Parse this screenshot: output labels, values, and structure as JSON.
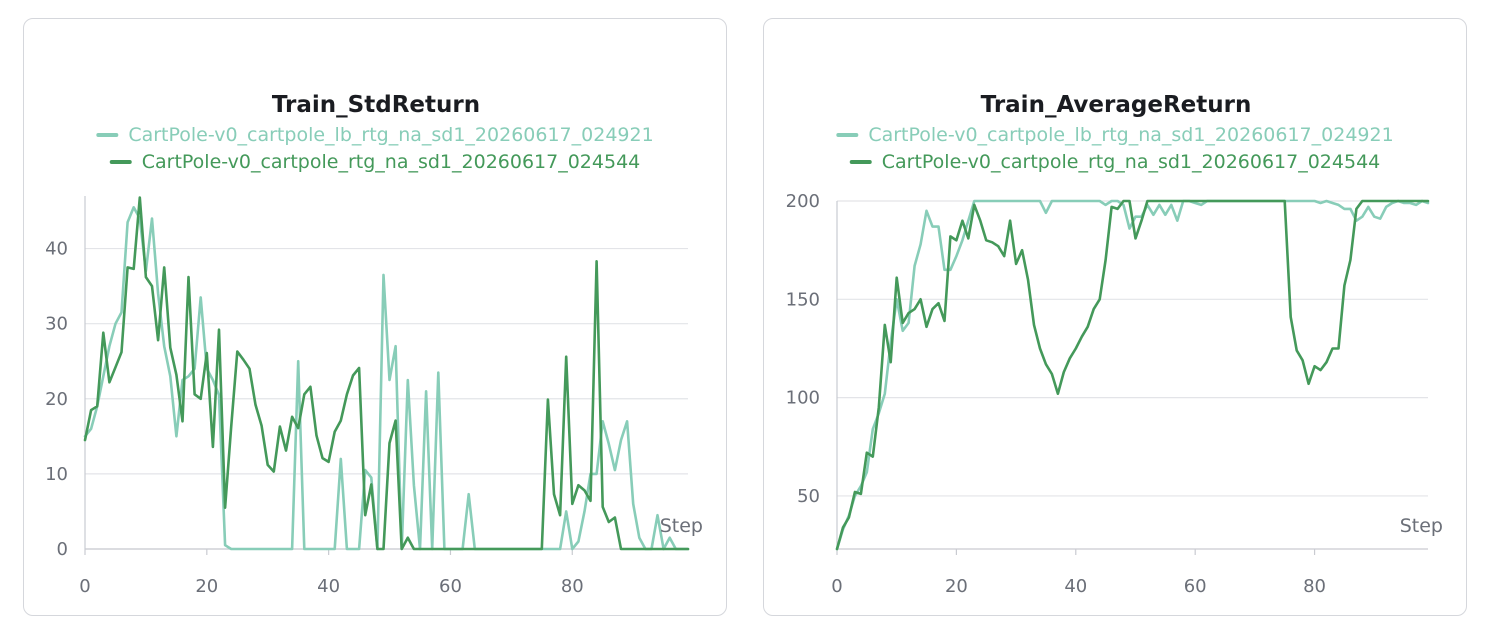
{
  "chart_data": [
    {
      "type": "line",
      "title": "Train_StdReturn",
      "xlabel": "Step",
      "ylabel": "",
      "xlim": [
        0,
        99
      ],
      "ylim": [
        0,
        47
      ],
      "xticks": [
        0,
        20,
        40,
        60,
        80
      ],
      "yticks": [
        0,
        10,
        20,
        30,
        40
      ],
      "grid": true,
      "legend_position": "top",
      "series": [
        {
          "name": "CartPole-v0_cartpole_lb_rtg_na_sd1_20260617_024921",
          "color": "#88cdb8",
          "x": [
            0,
            1,
            2,
            3,
            4,
            5,
            6,
            7,
            8,
            9,
            10,
            11,
            12,
            13,
            14,
            15,
            16,
            17,
            18,
            19,
            20,
            21,
            22,
            23,
            24,
            25,
            26,
            27,
            28,
            29,
            30,
            31,
            32,
            33,
            34,
            35,
            36,
            37,
            38,
            39,
            40,
            41,
            42,
            43,
            44,
            45,
            46,
            47,
            48,
            49,
            50,
            51,
            52,
            53,
            54,
            55,
            56,
            57,
            58,
            59,
            60,
            61,
            62,
            63,
            64,
            65,
            66,
            67,
            68,
            69,
            70,
            71,
            72,
            73,
            74,
            75,
            76,
            77,
            78,
            79,
            80,
            81,
            82,
            83,
            84,
            85,
            86,
            87,
            88,
            89,
            90,
            91,
            92,
            93,
            94,
            95,
            96,
            97,
            98,
            99
          ],
          "y": [
            15,
            16,
            19,
            23,
            27,
            30,
            31.5,
            43.5,
            45.5,
            44,
            37,
            44,
            34,
            27,
            23,
            15,
            22.5,
            23,
            24,
            33.5,
            24,
            22.5,
            20.5,
            0.5,
            0,
            0,
            0,
            0,
            0,
            0,
            0,
            0,
            0,
            0,
            0,
            25,
            0,
            0,
            0,
            0,
            0,
            0,
            12,
            0,
            0,
            0,
            10.5,
            9.5,
            0,
            36.5,
            22.5,
            27,
            0,
            22.5,
            8.5,
            0,
            21,
            0,
            23.5,
            0,
            0,
            0,
            0,
            7.3,
            0,
            0,
            0,
            0,
            0,
            0,
            0,
            0,
            0,
            0,
            0,
            0,
            0,
            0,
            0,
            5,
            0,
            1,
            5,
            10,
            10,
            17,
            14,
            10.5,
            14.5,
            17,
            6,
            1.5,
            0,
            0,
            4.5,
            0,
            1.5,
            0,
            0,
            0
          ]
        },
        {
          "name": "CartPole-v0_cartpole_rtg_na_sd1_20260617_024544",
          "color": "#44995a",
          "x": [
            0,
            1,
            2,
            3,
            4,
            5,
            6,
            7,
            8,
            9,
            10,
            11,
            12,
            13,
            14,
            15,
            16,
            17,
            18,
            19,
            20,
            21,
            22,
            23,
            24,
            25,
            26,
            27,
            28,
            29,
            30,
            31,
            32,
            33,
            34,
            35,
            36,
            37,
            38,
            39,
            40,
            41,
            42,
            43,
            44,
            45,
            46,
            47,
            48,
            49,
            50,
            51,
            52,
            53,
            54,
            55,
            56,
            57,
            58,
            59,
            60,
            61,
            62,
            63,
            64,
            65,
            66,
            67,
            68,
            69,
            70,
            71,
            72,
            73,
            74,
            75,
            76,
            77,
            78,
            79,
            80,
            81,
            82,
            83,
            84,
            85,
            86,
            87,
            88,
            89,
            90,
            91,
            92,
            93,
            94,
            95,
            96,
            97,
            98,
            99
          ],
          "y": [
            14.5,
            18.5,
            19,
            28.8,
            22.2,
            24.2,
            26.2,
            37.5,
            37.3,
            46.8,
            36.2,
            35,
            27.8,
            37.5,
            26.8,
            23.2,
            17,
            36.2,
            20.6,
            20,
            26.1,
            13.6,
            29.2,
            5.5,
            16.3,
            26.3,
            25.2,
            24,
            19.2,
            16.4,
            11.2,
            10.3,
            16.3,
            13.1,
            17.6,
            16.1,
            20.6,
            21.6,
            15.1,
            12.1,
            11.6,
            15.6,
            17.1,
            20.6,
            23.1,
            24.1,
            4.5,
            8.6,
            0,
            0,
            14.1,
            17.1,
            0,
            1.5,
            0,
            0,
            0,
            0,
            0,
            0,
            0,
            0,
            0,
            0,
            0,
            0,
            0,
            0,
            0,
            0,
            0,
            0,
            0,
            0,
            0,
            0,
            19.9,
            7.3,
            4.5,
            25.6,
            6,
            8.5,
            7.8,
            6.4,
            38.3,
            5.6,
            3.6,
            4.2,
            0,
            0,
            0,
            0,
            0,
            0,
            0,
            0,
            0,
            0,
            0,
            0
          ]
        }
      ]
    },
    {
      "type": "line",
      "title": "Train_AverageReturn",
      "xlabel": "Step",
      "ylabel": "",
      "xlim": [
        0,
        99
      ],
      "ylim": [
        23,
        200
      ],
      "xticks": [
        0,
        20,
        40,
        60,
        80
      ],
      "yticks": [
        50,
        100,
        150,
        200
      ],
      "grid": true,
      "legend_position": "top",
      "series": [
        {
          "name": "CartPole-v0_cartpole_lb_rtg_na_sd1_20260617_024921",
          "color": "#88cdb8",
          "x": [
            0,
            1,
            2,
            3,
            4,
            5,
            6,
            7,
            8,
            9,
            10,
            11,
            12,
            13,
            14,
            15,
            16,
            17,
            18,
            19,
            20,
            21,
            22,
            23,
            24,
            25,
            26,
            27,
            28,
            29,
            30,
            31,
            32,
            33,
            34,
            35,
            36,
            37,
            38,
            39,
            40,
            41,
            42,
            43,
            44,
            45,
            46,
            47,
            48,
            49,
            50,
            51,
            52,
            53,
            54,
            55,
            56,
            57,
            58,
            59,
            60,
            61,
            62,
            63,
            64,
            65,
            66,
            67,
            68,
            69,
            70,
            71,
            72,
            73,
            74,
            75,
            76,
            77,
            78,
            79,
            80,
            81,
            82,
            83,
            84,
            85,
            86,
            87,
            88,
            89,
            90,
            91,
            92,
            93,
            94,
            95,
            96,
            97,
            98,
            99
          ],
          "y": [
            23,
            33,
            40,
            50,
            55,
            62,
            84,
            92,
            102,
            128,
            150,
            134,
            138,
            167,
            178,
            195,
            187,
            187,
            165,
            165,
            172,
            180,
            190,
            200,
            200,
            200,
            200,
            200,
            200,
            200,
            200,
            200,
            200,
            200,
            200,
            194,
            200,
            200,
            200,
            200,
            200,
            200,
            200,
            200,
            200,
            198,
            200,
            200,
            198,
            186,
            192,
            192,
            198,
            193,
            198,
            193,
            198,
            190,
            200,
            200,
            199,
            198,
            200,
            200,
            200,
            200,
            200,
            200,
            200,
            200,
            200,
            200,
            200,
            200,
            200,
            200,
            200,
            200,
            200,
            200,
            200,
            199,
            200,
            199,
            198,
            196,
            196,
            190,
            192,
            197,
            192,
            191,
            197,
            199,
            200,
            199,
            199,
            198,
            200,
            199
          ]
        },
        {
          "name": "CartPole-v0_cartpole_rtg_na_sd1_20260617_024544",
          "color": "#44995a",
          "x": [
            0,
            1,
            2,
            3,
            4,
            5,
            6,
            7,
            8,
            9,
            10,
            11,
            12,
            13,
            14,
            15,
            16,
            17,
            18,
            19,
            20,
            21,
            22,
            23,
            24,
            25,
            26,
            27,
            28,
            29,
            30,
            31,
            32,
            33,
            34,
            35,
            36,
            37,
            38,
            39,
            40,
            41,
            42,
            43,
            44,
            45,
            46,
            47,
            48,
            49,
            50,
            51,
            52,
            53,
            54,
            55,
            56,
            57,
            58,
            59,
            60,
            61,
            62,
            63,
            64,
            65,
            66,
            67,
            68,
            69,
            70,
            71,
            72,
            73,
            74,
            75,
            76,
            77,
            78,
            79,
            80,
            81,
            82,
            83,
            84,
            85,
            86,
            87,
            88,
            89,
            90,
            91,
            92,
            93,
            94,
            95,
            96,
            97,
            98,
            99
          ],
          "y": [
            23,
            34,
            39,
            52,
            51,
            72,
            70,
            95,
            137,
            118,
            161,
            138,
            143,
            145,
            150,
            136,
            145,
            148,
            139,
            182,
            180,
            190,
            181,
            198,
            190,
            180,
            179,
            177,
            172,
            190,
            168,
            175,
            160,
            137,
            125,
            117,
            112,
            102,
            113,
            120,
            125,
            131,
            136,
            145,
            150,
            170,
            197,
            196,
            200,
            200,
            181,
            190,
            200,
            200,
            200,
            200,
            200,
            200,
            200,
            200,
            200,
            200,
            200,
            200,
            200,
            200,
            200,
            200,
            200,
            200,
            200,
            200,
            200,
            200,
            200,
            200,
            141,
            124,
            119,
            107,
            116,
            114,
            118,
            125,
            125,
            157,
            170,
            196,
            200,
            200,
            200,
            200,
            200,
            200,
            200,
            200,
            200,
            200,
            200,
            200
          ]
        }
      ]
    }
  ]
}
